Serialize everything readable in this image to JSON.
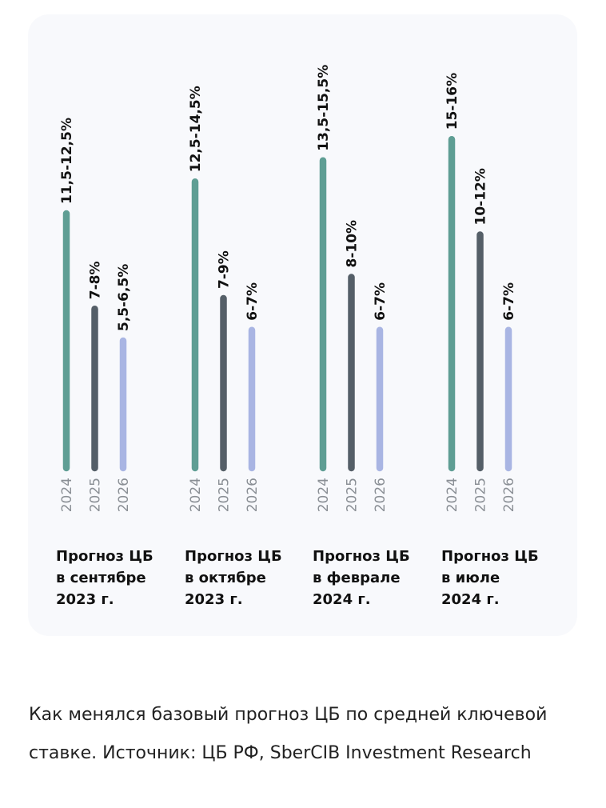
{
  "chart_data": {
    "type": "bar",
    "orientation": "vertical",
    "categories": [
      "Прогноз ЦБ\nв сентябре\n2023 г.",
      "Прогноз ЦБ\nв октябре\n2023 г.",
      "Прогноз ЦБ\nв феврале\n2024 г.",
      "Прогноз ЦБ\nв июле\n2024 г."
    ],
    "bar_labels": [
      "2024",
      "2025",
      "2026"
    ],
    "series": [
      {
        "name": "2024",
        "color": "#5f9e94",
        "low": [
          11.5,
          12.5,
          13.5,
          15
        ],
        "high": [
          12.5,
          14.5,
          15.5,
          16
        ],
        "labels": [
          "11,5-12,5%",
          "12,5-14,5%",
          "13,5-15,5%",
          "15-16%"
        ]
      },
      {
        "name": "2025",
        "color": "#555f68",
        "low": [
          7,
          7,
          8,
          10
        ],
        "high": [
          8,
          9,
          10,
          12
        ],
        "labels": [
          "7-8%",
          "7-9%",
          "8-10%",
          "10-12%"
        ]
      },
      {
        "name": "2026",
        "color": "#a9b5e3",
        "low": [
          5.5,
          6,
          6,
          6
        ],
        "high": [
          6.5,
          7,
          7,
          7
        ],
        "labels": [
          "5,5-6,5%",
          "6-7%",
          "6-7%",
          "6-7%"
        ]
      }
    ],
    "unit": "%",
    "grid": false
  },
  "caption": "Как менялся базовый прогноз ЦБ по средней ключевой ставке. Источник: ЦБ РФ, SberCIB Investment Research"
}
